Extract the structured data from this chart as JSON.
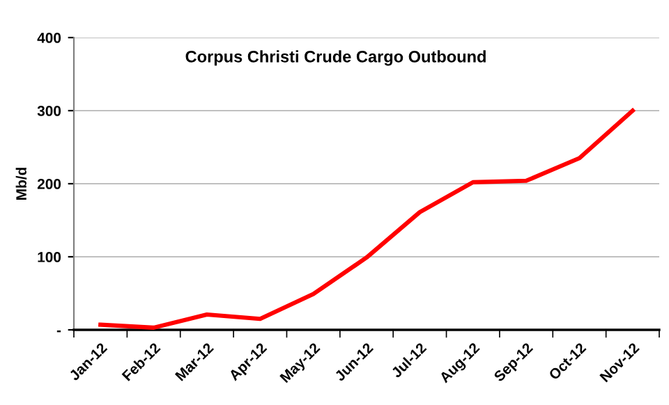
{
  "chart_data": {
    "type": "line",
    "title": "Corpus Christi Crude Cargo Outbound",
    "ylabel": "Mb/d",
    "categories": [
      "Jan-12",
      "Feb-12",
      "Mar-12",
      "Apr-12",
      "May-12",
      "Jun-12",
      "Jul-12",
      "Aug-12",
      "Sep-12",
      "Oct-12",
      "Nov-12"
    ],
    "series": [
      {
        "color": "#ff0000",
        "values": [
          7,
          3,
          21,
          15,
          49,
          99,
          161,
          202,
          204,
          235,
          300
        ]
      }
    ],
    "ylim": [
      0,
      400
    ],
    "yticks": [
      {
        "value": 0,
        "label": "-"
      },
      100,
      200,
      300,
      400
    ],
    "grid": "y",
    "legend": false,
    "marker": "none",
    "line_style": "solid"
  }
}
